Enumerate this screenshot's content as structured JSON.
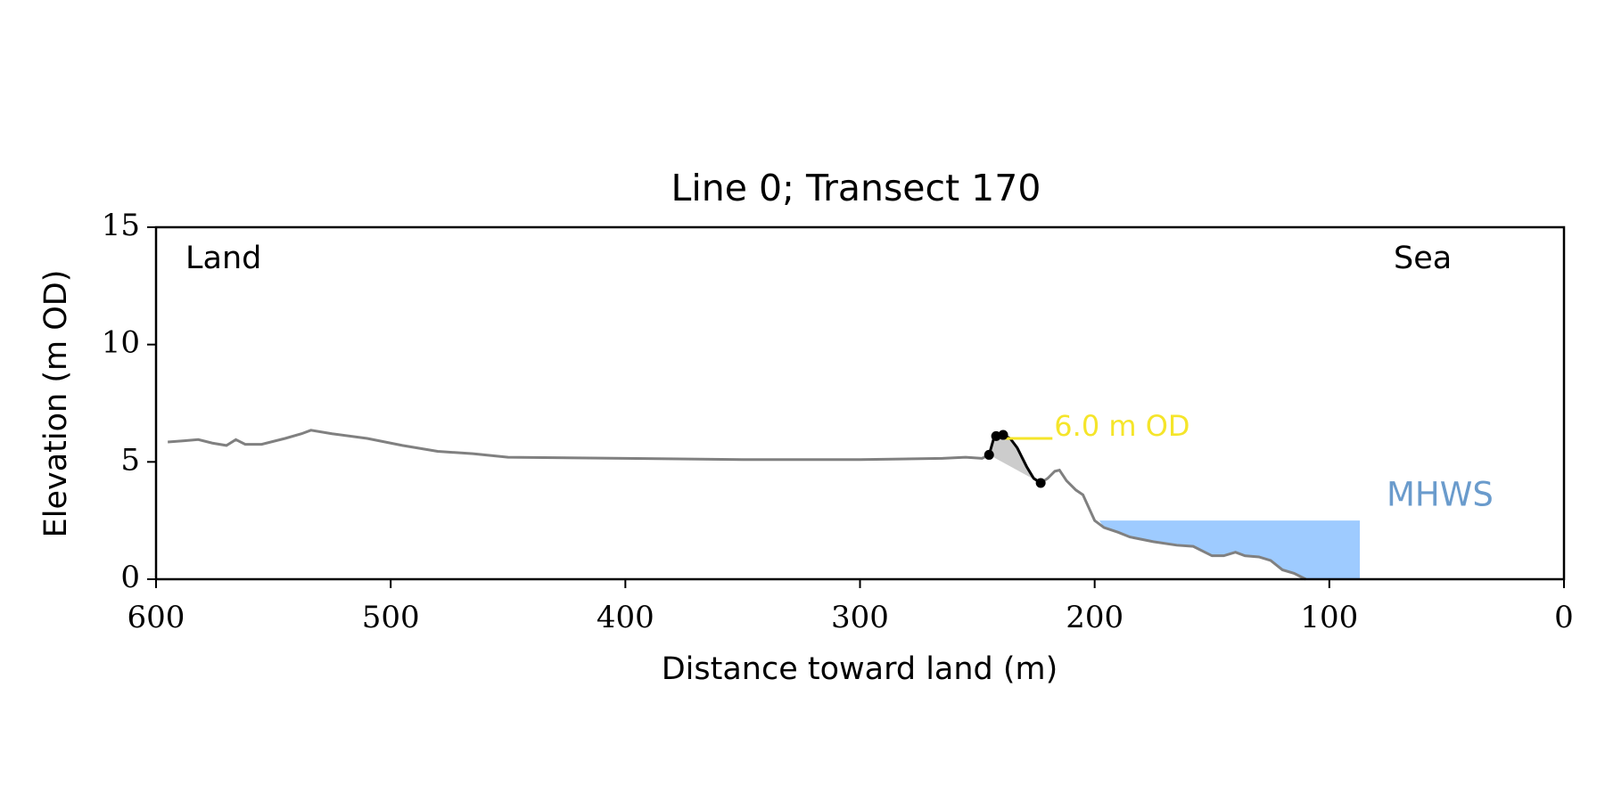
{
  "chart_data": {
    "type": "line",
    "title": "Line 0; Transect 170",
    "xlabel": "Distance toward land (m)",
    "ylabel": "Elevation (m OD)",
    "xlim": [
      600,
      0
    ],
    "ylim": [
      0,
      15
    ],
    "xticks": [
      600,
      500,
      400,
      300,
      200,
      100,
      0
    ],
    "yticks": [
      0,
      5,
      10,
      15
    ],
    "annotations": [
      "Land",
      "Sea"
    ],
    "series": [
      {
        "color": "#808080",
        "x": [
          595,
          588,
          582,
          576,
          570,
          566,
          562,
          555,
          545,
          538,
          534,
          525,
          510,
          495,
          480,
          465,
          450,
          400,
          350,
          300,
          265,
          255,
          248,
          245,
          null,
          223,
          220,
          217,
          215,
          212,
          208,
          205,
          200,
          196,
          190,
          185,
          175,
          165,
          158,
          150,
          145,
          140,
          136,
          130,
          125,
          120,
          115,
          110
        ],
        "values": [
          5.85,
          5.9,
          5.95,
          5.8,
          5.7,
          5.95,
          5.75,
          5.75,
          6.0,
          6.2,
          6.35,
          6.2,
          6.0,
          5.7,
          5.45,
          5.35,
          5.2,
          5.15,
          5.1,
          5.1,
          5.15,
          5.2,
          5.15,
          5.3,
          null,
          4.1,
          4.3,
          4.6,
          4.65,
          4.2,
          3.8,
          3.6,
          2.5,
          2.2,
          2.0,
          1.8,
          1.6,
          1.45,
          1.4,
          1.0,
          1.0,
          1.15,
          1.0,
          0.95,
          0.8,
          0.4,
          0.25,
          0.0
        ]
      },
      {
        "color": "#000000",
        "x": [
          245,
          243,
          242,
          239,
          236,
          233,
          229,
          226,
          223
        ],
        "values": [
          5.3,
          6.0,
          6.1,
          6.15,
          6.0,
          5.6,
          4.8,
          4.3,
          4.1
        ]
      }
    ],
    "cliff_fill_color": "#cccccc",
    "points": {
      "color": "#000000",
      "x": [
        245,
        242,
        239,
        223
      ],
      "values": [
        5.3,
        6.1,
        6.15,
        4.1
      ]
    },
    "contour": {
      "label": "6.0 m OD",
      "value": 6.0,
      "x": [
        239,
        218
      ],
      "color": "#f5e52a"
    },
    "mhws": {
      "label": "MHWS",
      "value": 2.5,
      "x": [
        198,
        87
      ],
      "color": "#9ecbff",
      "label_color": "#6a9bcc"
    }
  }
}
